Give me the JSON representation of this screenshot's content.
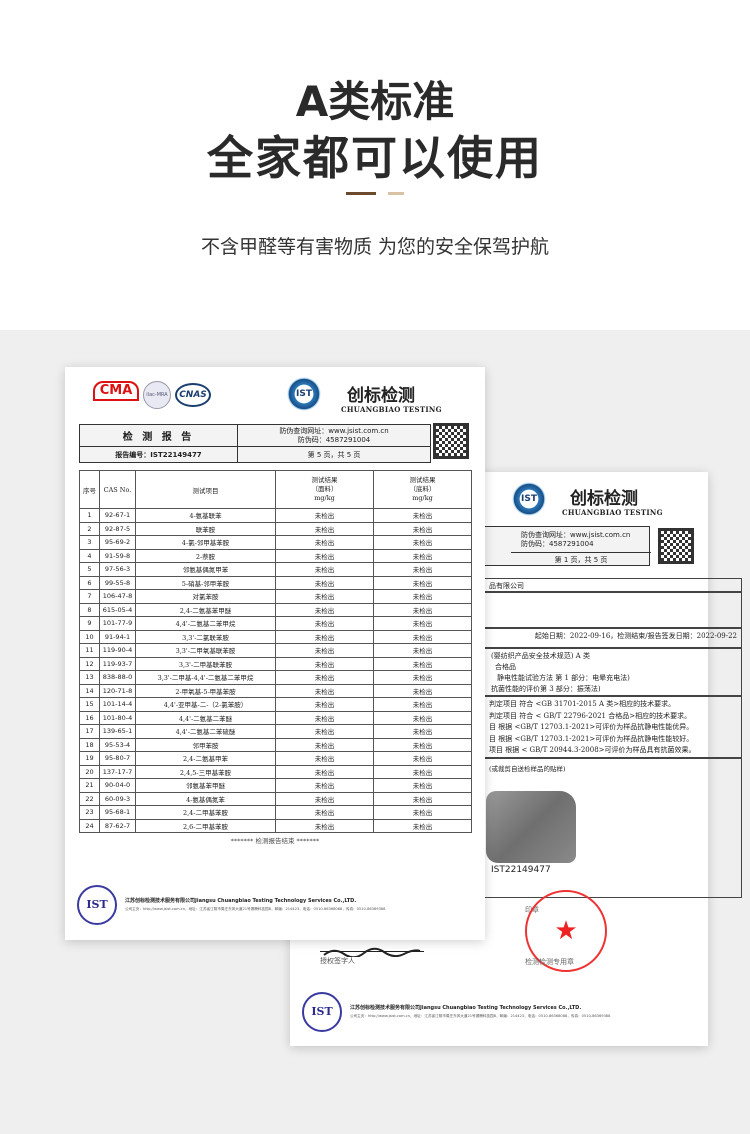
{
  "header": {
    "title_line1": "A类标准",
    "title_line2": "全家都可以使用",
    "subtitle": "不含甲醛等有害物质 为您的安全保驾护航",
    "accent_dark": "#6b4a2e",
    "accent_light": "#d9c2a3"
  },
  "brand": {
    "name_cn": "创标检测",
    "name_en": "CHUANGBIAO TESTING",
    "logo_text": "IST"
  },
  "report_page1": {
    "cert_logos": [
      "CMA",
      "ilac-MRA",
      "CNAS"
    ],
    "title": "检 测 报 告",
    "verify_site": "防伪查询网址：www.jsist.com.cn",
    "verify_code": "防伪码：4587291004",
    "report_no": "报告编号：IST22149477",
    "page": "第 5 页，共 5 页",
    "columns": [
      "序号",
      "CAS No.",
      "测试项目",
      "测试结果\n（面料）\nmg/kg",
      "测试结果\n（底料）\nmg/kg"
    ],
    "rows": [
      [
        "1",
        "92-67-1",
        "4-氨基联苯",
        "未检出",
        "未检出"
      ],
      [
        "2",
        "92-87-5",
        "联苯胺",
        "未检出",
        "未检出"
      ],
      [
        "3",
        "95-69-2",
        "4-氯-邻甲基苯胺",
        "未检出",
        "未检出"
      ],
      [
        "4",
        "91-59-8",
        "2-萘胺",
        "未检出",
        "未检出"
      ],
      [
        "5",
        "97-56-3",
        "邻氨基偶氮甲苯",
        "未检出",
        "未检出"
      ],
      [
        "6",
        "99-55-8",
        "5-硝基-邻甲苯胺",
        "未检出",
        "未检出"
      ],
      [
        "7",
        "106-47-8",
        "对氯苯胺",
        "未检出",
        "未检出"
      ],
      [
        "8",
        "615-05-4",
        "2,4-二氨基苯甲醚",
        "未检出",
        "未检出"
      ],
      [
        "9",
        "101-77-9",
        "4,4'-二氨基二苯甲烷",
        "未检出",
        "未检出"
      ],
      [
        "10",
        "91-94-1",
        "3,3'-二氯联苯胺",
        "未检出",
        "未检出"
      ],
      [
        "11",
        "119-90-4",
        "3,3'-二甲氧基联苯胺",
        "未检出",
        "未检出"
      ],
      [
        "12",
        "119-93-7",
        "3,3'-二甲基联苯胺",
        "未检出",
        "未检出"
      ],
      [
        "13",
        "838-88-0",
        "3,3'-二甲基-4,4'-二氨基二苯甲烷",
        "未检出",
        "未检出"
      ],
      [
        "14",
        "120-71-8",
        "2-甲氧基-5-甲基苯胺",
        "未检出",
        "未检出"
      ],
      [
        "15",
        "101-14-4",
        "4,4'-亚甲基-二-（2-氯苯胺）",
        "未检出",
        "未检出"
      ],
      [
        "16",
        "101-80-4",
        "4,4'-二氨基二苯醚",
        "未检出",
        "未检出"
      ],
      [
        "17",
        "139-65-1",
        "4,4'-二氨基二苯硫醚",
        "未检出",
        "未检出"
      ],
      [
        "18",
        "95-53-4",
        "邻甲苯胺",
        "未检出",
        "未检出"
      ],
      [
        "19",
        "95-80-7",
        "2,4-二氨基甲苯",
        "未检出",
        "未检出"
      ],
      [
        "20",
        "137-17-7",
        "2,4,5-三甲基苯胺",
        "未检出",
        "未检出"
      ],
      [
        "21",
        "90-04-0",
        "邻氨基苯甲醚",
        "未检出",
        "未检出"
      ],
      [
        "22",
        "60-09-3",
        "4-氨基偶氮苯",
        "未检出",
        "未检出"
      ],
      [
        "23",
        "95-68-1",
        "2,4-二甲基苯胺",
        "未检出",
        "未检出"
      ],
      [
        "24",
        "87-62-7",
        "2,6-二甲基苯胺",
        "未检出",
        "未检出"
      ]
    ],
    "end_note": "******* 检测报告结束 *******"
  },
  "report_page2": {
    "verify_site": "防伪查询网址：www.jsist.com.cn",
    "verify_code": "防伪码：4587291004",
    "page": "第 1 页，共 5 页",
    "company": "品有限公司",
    "dates": "起始日期：2022-09-16，检测结束/报告签发日期：2022-09-22",
    "standards": [
      "(婴纺织产品安全技术规范)  A 类",
      "合格品",
      "静电性能试验方法 第 1 部分：电晕充电法)",
      "抗菌性能的评价第 3 部分：振荡法)"
    ],
    "conclusions": [
      "判定项目 符合 <GB 31701-2015 A 类>相应的技术要求。",
      "判定项目 符合 < GB/T 22796-2021 合格品>相应的技术要求。",
      "目 根据 <GB/T 12703.1-2021>可评价为样品抗静电性能优异。",
      "目 根据 <GB/T 12703.1-2021>可评价为样品抗静电性能较好。",
      "项目 根据 < GB/T 20944.3-2008>可评价为样品具有抗菌效果。"
    ],
    "sample_caption": "(或裁剪自送检样品的贴样)",
    "sample_label": "IST22149477",
    "stamp_label": "印章",
    "signer_label": "授权签字人",
    "stamp_caption": "检测检测专用章",
    "seal_text": "江苏创标检测技术服务有限公司"
  },
  "footer": {
    "company": "江苏创标检测技术服务有限公司Jiangsu Chuangbiao Testing Technology Services Co.,LTD.",
    "contact": "公司主页：http://www.jsist.com.cn，地址：江苏省江阴市周庄东风大道21号锡腾科技园B，邮编：214423，电话：0510-86368088，传真：0510-86369388"
  }
}
